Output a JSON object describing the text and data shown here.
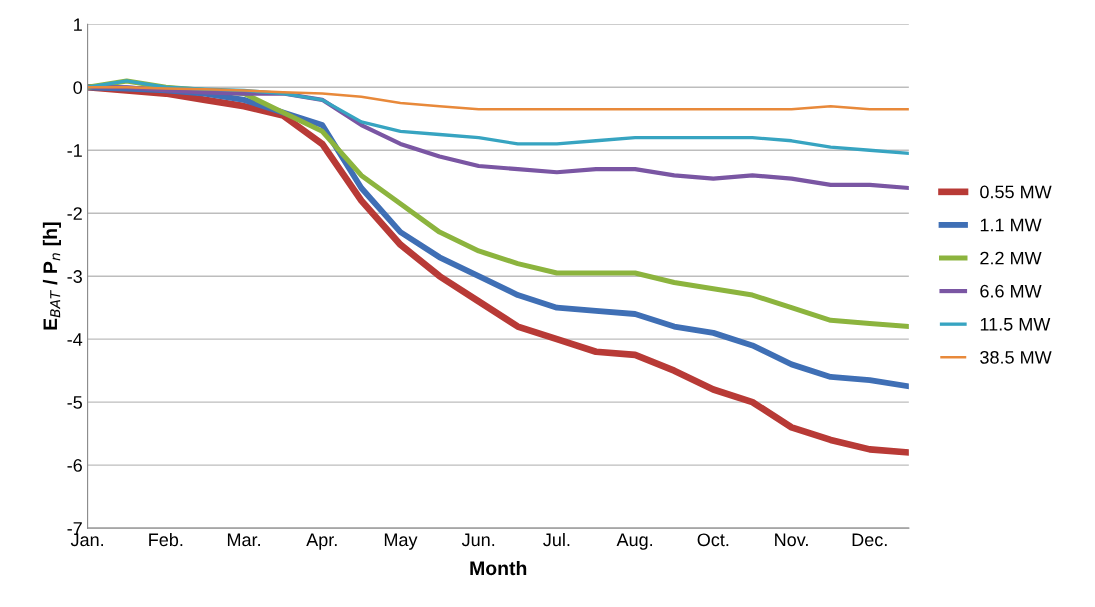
{
  "chart_data": {
    "type": "line",
    "xlabel": "Month",
    "ylabel": "E$_{BAT}$ / P$_{n}$ [h]",
    "categories": [
      "Jan.",
      null,
      "Feb.",
      null,
      "Mar.",
      null,
      "Apr.",
      null,
      "May",
      null,
      "Jun.",
      null,
      "Jul.",
      null,
      "Aug.",
      null,
      "Oct.",
      null,
      "Nov.",
      null,
      "Dec.",
      null
    ],
    "ylim": [
      -7,
      1
    ],
    "yticks": [
      -7,
      -6,
      -5,
      -4,
      -3,
      -2,
      -1,
      0,
      1
    ],
    "grid": "y",
    "legend": "right",
    "marker": "none",
    "line_style": "solid",
    "series": [
      {
        "name": "0.55 MW",
        "color": "#b83a36",
        "values": [
          0,
          -0.05,
          -0.1,
          -0.2,
          -0.3,
          -0.45,
          -0.9,
          -1.8,
          -2.5,
          -3.0,
          -3.4,
          -3.8,
          -4.0,
          -4.2,
          -4.25,
          -4.5,
          -4.8,
          -5.0,
          -5.4,
          -5.6,
          -5.75,
          -5.8
        ]
      },
      {
        "name": "1.1 MW",
        "color": "#3f6fb5",
        "values": [
          0,
          -0.02,
          -0.05,
          -0.1,
          -0.2,
          -0.4,
          -0.6,
          -1.6,
          -2.3,
          -2.7,
          -3.0,
          -3.3,
          -3.5,
          -3.55,
          -3.6,
          -3.8,
          -3.9,
          -4.1,
          -4.4,
          -4.6,
          -4.65,
          -4.75
        ]
      },
      {
        "name": "2.2 MW",
        "color": "#8cb43e",
        "values": [
          0,
          0.1,
          0,
          -0.05,
          -0.1,
          -0.4,
          -0.7,
          -1.4,
          -1.85,
          -2.3,
          -2.6,
          -2.8,
          -2.95,
          -2.95,
          -2.95,
          -3.1,
          -3.2,
          -3.3,
          -3.5,
          -3.7,
          -3.75,
          -3.8
        ]
      },
      {
        "name": "6.6 MW",
        "color": "#7a56a3",
        "values": [
          0,
          0,
          -0.05,
          -0.08,
          -0.1,
          -0.1,
          -0.2,
          -0.6,
          -0.9,
          -1.1,
          -1.25,
          -1.3,
          -1.35,
          -1.3,
          -1.3,
          -1.4,
          -1.45,
          -1.4,
          -1.45,
          -1.55,
          -1.55,
          -1.6
        ]
      },
      {
        "name": "11.5 MW",
        "color": "#37a4c1",
        "values": [
          0,
          0.1,
          0,
          -0.03,
          -0.05,
          -0.1,
          -0.2,
          -0.55,
          -0.7,
          -0.75,
          -0.8,
          -0.9,
          -0.9,
          -0.85,
          -0.8,
          -0.8,
          -0.8,
          -0.8,
          -0.85,
          -0.95,
          -1.0,
          -1.05
        ]
      },
      {
        "name": "38.5 MW",
        "color": "#e8893a",
        "values": [
          0,
          0,
          -0.02,
          -0.03,
          -0.05,
          -0.08,
          -0.1,
          -0.15,
          -0.25,
          -0.3,
          -0.35,
          -0.35,
          -0.35,
          -0.35,
          -0.35,
          -0.35,
          -0.35,
          -0.35,
          -0.35,
          -0.3,
          -0.35,
          -0.35
        ]
      }
    ]
  }
}
